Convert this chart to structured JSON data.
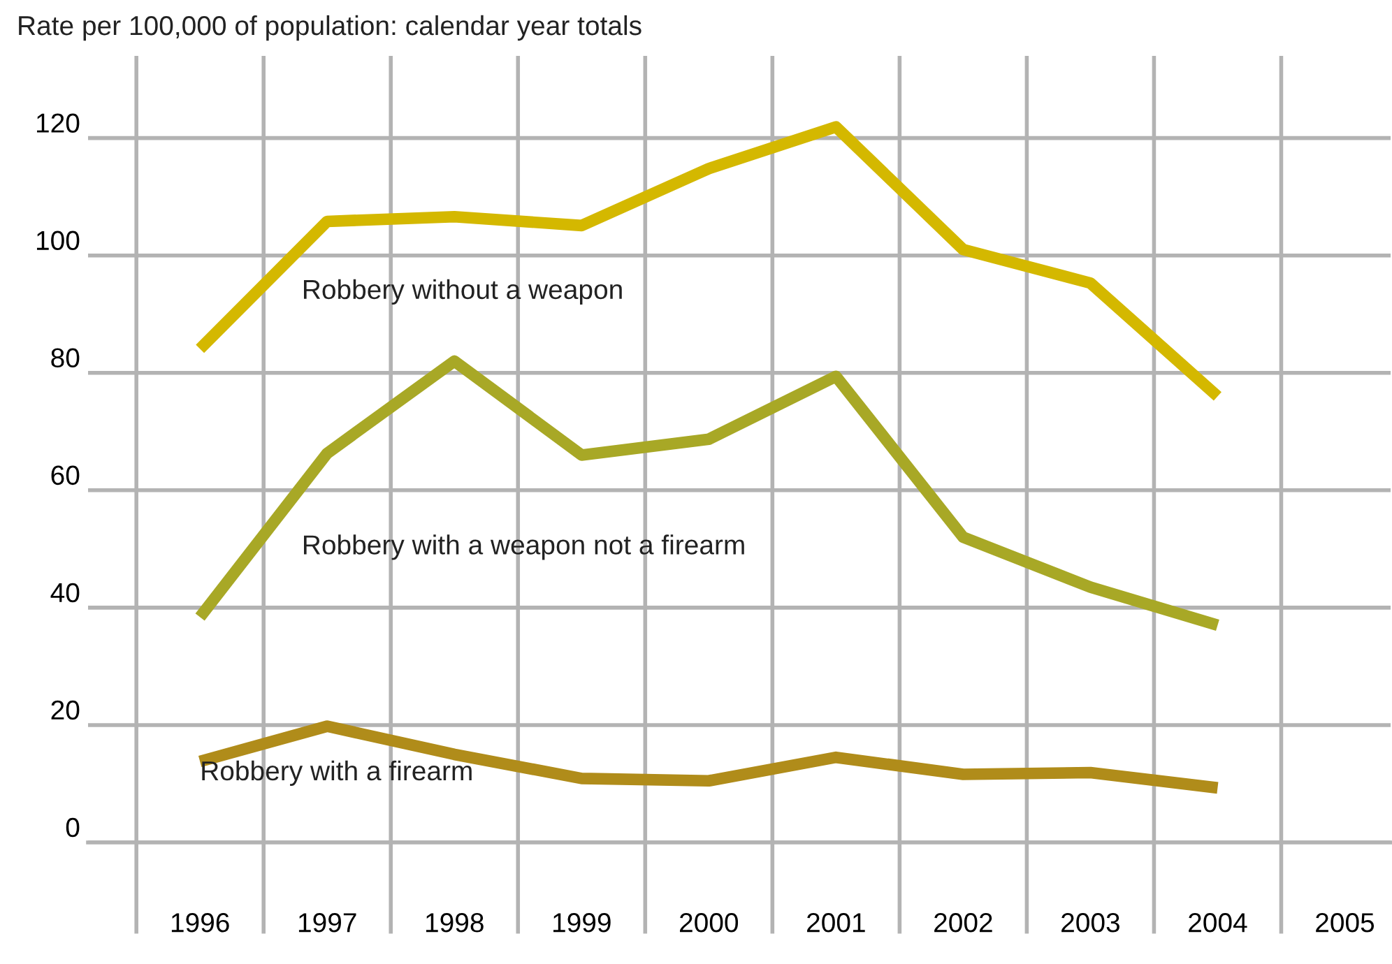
{
  "chart_data": {
    "type": "line",
    "title": "Rate per 100,000 of population: calendar year totals",
    "categories": [
      "1996",
      "1997",
      "1998",
      "1999",
      "2000",
      "2001",
      "2002",
      "2003",
      "2004",
      "2005"
    ],
    "series": [
      {
        "name": "Robbery without a weapon",
        "color": "#d4b800",
        "values": [
          84.1,
          105.8,
          106.6,
          105.1,
          114.8,
          121.9,
          101,
          95.3,
          76,
          null
        ]
      },
      {
        "name": "Robbery with a weapon not a firearm",
        "color": "#a8a826",
        "values": [
          38.4,
          66.3,
          82,
          66,
          68.7,
          79.4,
          52,
          43.5,
          37,
          null
        ]
      },
      {
        "name": "Robbery with a firearm",
        "color": "#b08c1a",
        "values": [
          13.8,
          19.8,
          15,
          10.9,
          10.5,
          14.5,
          11.6,
          11.9,
          9.3,
          null
        ]
      }
    ],
    "ylim": [
      0,
      134
    ],
    "yticks": [
      0,
      20,
      40,
      60,
      80,
      100,
      120
    ],
    "grid": true,
    "legend": false,
    "marker": "none",
    "line_style": "solid"
  }
}
